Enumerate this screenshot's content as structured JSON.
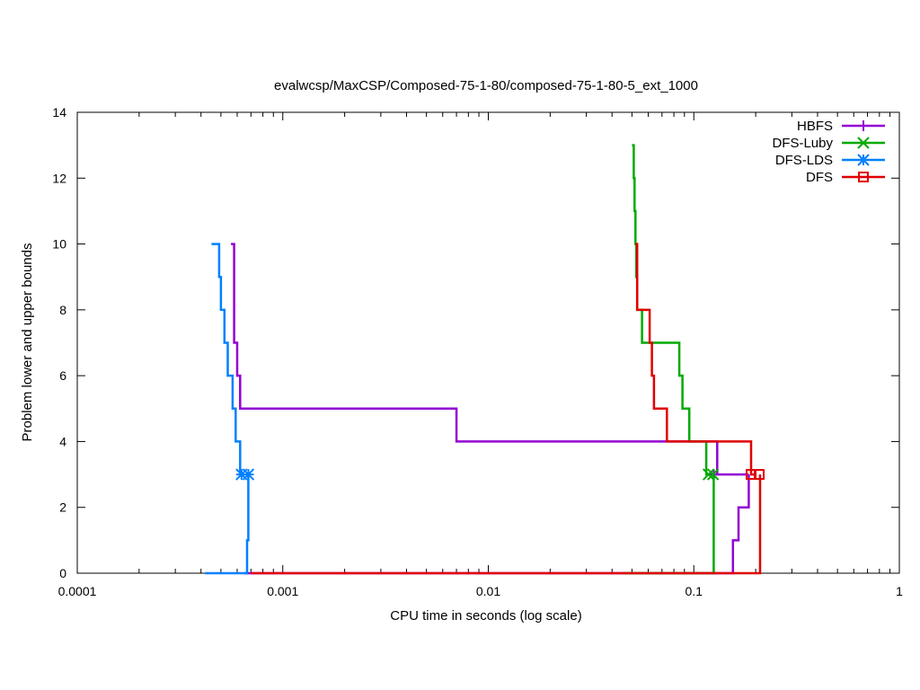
{
  "chart_data": {
    "type": "line",
    "title": "evalwcsp/MaxCSP/Composed-75-1-80/composed-75-1-80-5_ext_1000",
    "xlabel": "CPU time in seconds (log scale)",
    "ylabel": "Problem lower and upper bounds",
    "xscale": "log",
    "xlim": [
      0.0001,
      1
    ],
    "ylim": [
      0,
      14
    ],
    "xticks": [
      0.0001,
      0.001,
      0.01,
      0.1,
      1
    ],
    "xtick_labels": [
      "0.0001",
      "0.001",
      "0.01",
      "0.1",
      "1"
    ],
    "yticks": [
      0,
      2,
      4,
      6,
      8,
      10,
      12,
      14
    ],
    "ytick_labels": [
      "0",
      "2",
      "4",
      "6",
      "8",
      "10",
      "12",
      "14"
    ],
    "grid": false,
    "legend_position": "top-right",
    "series": [
      {
        "name": "HBFS",
        "color": "#9400d3",
        "marker": "plus",
        "upper": [
          [
            0.00056,
            10
          ],
          [
            0.00058,
            7
          ],
          [
            0.0006,
            6
          ],
          [
            0.00062,
            5
          ],
          [
            0.007,
            4
          ],
          [
            0.13,
            3
          ],
          [
            0.185,
            3
          ]
        ],
        "lower": [
          [
            0.00065,
            0
          ],
          [
            0.15,
            0
          ],
          [
            0.155,
            1
          ],
          [
            0.165,
            2
          ],
          [
            0.185,
            3
          ]
        ],
        "markers": [
          [
            0.125,
            3
          ]
        ]
      },
      {
        "name": "DFS-Luby",
        "color": "#00aa00",
        "marker": "x",
        "upper": [
          [
            0.05,
            13
          ],
          [
            0.051,
            12
          ],
          [
            0.0515,
            11
          ],
          [
            0.052,
            10
          ],
          [
            0.0525,
            9
          ],
          [
            0.053,
            8
          ],
          [
            0.056,
            7
          ],
          [
            0.085,
            6
          ],
          [
            0.088,
            5
          ],
          [
            0.095,
            4
          ],
          [
            0.115,
            3
          ],
          [
            0.12,
            3
          ]
        ],
        "lower": [
          [
            0.045,
            0
          ],
          [
            0.125,
            0
          ],
          [
            0.125,
            3
          ]
        ],
        "markers": [
          [
            0.118,
            3
          ],
          [
            0.124,
            3
          ]
        ]
      },
      {
        "name": "DFS-LDS",
        "color": "#0080ff",
        "marker": "star",
        "upper": [
          [
            0.00045,
            10
          ],
          [
            0.00049,
            9
          ],
          [
            0.0005,
            8
          ],
          [
            0.00052,
            7
          ],
          [
            0.00054,
            6
          ],
          [
            0.00057,
            5
          ],
          [
            0.00059,
            4
          ],
          [
            0.00062,
            3
          ],
          [
            0.00065,
            3
          ]
        ],
        "lower": [
          [
            0.00042,
            0
          ],
          [
            0.00066,
            0
          ],
          [
            0.00067,
            1
          ],
          [
            0.00068,
            3
          ]
        ],
        "markers": [
          [
            0.00063,
            3
          ],
          [
            0.00068,
            3
          ]
        ]
      },
      {
        "name": "DFS",
        "color": "#e00000",
        "marker": "square",
        "upper": [
          [
            0.052,
            10
          ],
          [
            0.053,
            8
          ],
          [
            0.061,
            7
          ],
          [
            0.0625,
            6
          ],
          [
            0.064,
            5
          ],
          [
            0.074,
            4
          ],
          [
            0.19,
            3
          ],
          [
            0.2,
            3
          ]
        ],
        "lower": [
          [
            0.0007,
            0
          ],
          [
            0.21,
            0
          ],
          [
            0.21,
            3
          ]
        ],
        "markers": [
          [
            0.19,
            3
          ],
          [
            0.208,
            3
          ]
        ]
      }
    ]
  }
}
